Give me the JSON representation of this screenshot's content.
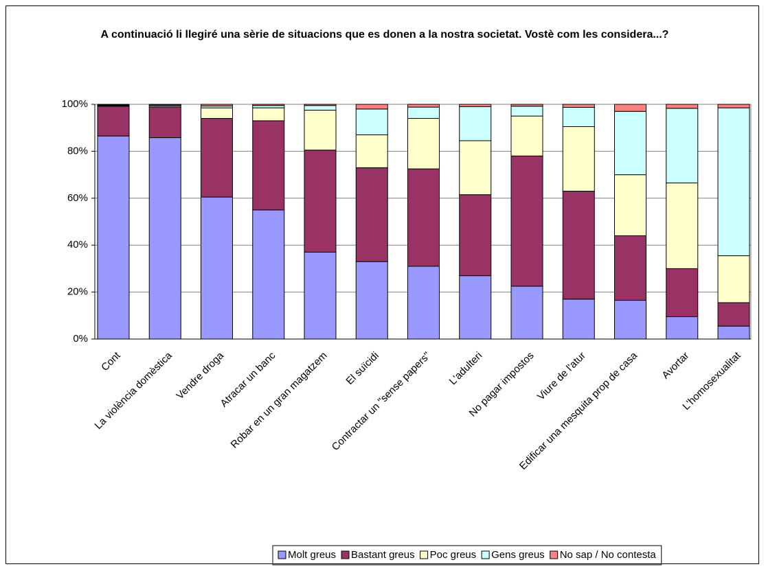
{
  "chart_data": {
    "type": "stacked-bar-100",
    "title": "A continuació li llegiré una sèrie de situacions que es donen a la nostra societat. Vostè com les considera...?",
    "categories": [
      "Cont",
      "La violència domèstica",
      "Vendre droga",
      "Atracar un banc",
      "Robar en un gran magatzem",
      "El suïcidi",
      "Contractar un \"sense papers\"",
      "L'adulteri",
      "No pagar impostos",
      "Viure de l'atur",
      "Edificar una mesquita prop de casa",
      "Avortar",
      "L'homosexualitat"
    ],
    "series": [
      {
        "name": "Molt greus",
        "color": "#9999ff",
        "values": [
          86.5,
          85.8,
          60.5,
          55,
          37,
          33,
          31,
          27,
          22.5,
          17,
          16.5,
          9.5,
          5.5
        ]
      },
      {
        "name": "Bastant greus",
        "color": "#993366",
        "values": [
          12.7,
          13,
          33.5,
          38,
          43.5,
          40,
          41.5,
          34.5,
          55.5,
          46,
          27.5,
          20.5,
          10
        ]
      },
      {
        "name": "Poc greus",
        "color": "#ffffcc",
        "values": [
          0.3,
          0.5,
          4.5,
          5.5,
          17,
          14,
          21.5,
          23,
          17,
          27.5,
          26,
          36.5,
          20
        ]
      },
      {
        "name": "Gens greus",
        "color": "#ccffff",
        "values": [
          0.3,
          0.4,
          0.8,
          1,
          2,
          11,
          4.8,
          14.5,
          4.2,
          8.2,
          27,
          31.8,
          63
        ]
      },
      {
        "name": "No sap / No contesta",
        "color": "#ff8080",
        "values": [
          0.2,
          0.3,
          0.7,
          0.5,
          0.5,
          2,
          1.2,
          1,
          0.8,
          1.3,
          3,
          1.7,
          1.5
        ]
      }
    ],
    "ylim": [
      0,
      100
    ],
    "yticks": [
      {
        "value": 0,
        "label": "0%"
      },
      {
        "value": 20,
        "label": "20%"
      },
      {
        "value": 40,
        "label": "40%"
      },
      {
        "value": 60,
        "label": "60%"
      },
      {
        "value": 80,
        "label": "80%"
      },
      {
        "value": 100,
        "label": "100%"
      }
    ],
    "grid": true,
    "legend": "bottom"
  }
}
